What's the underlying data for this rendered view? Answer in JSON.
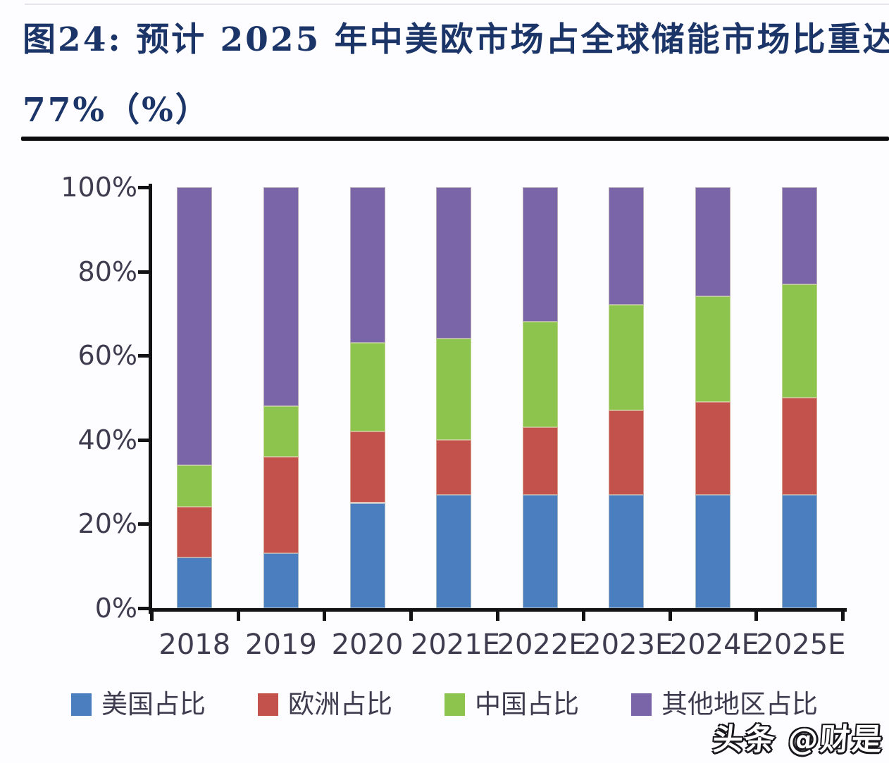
{
  "page": {
    "title_line1": "图24:  预计 2025 年中美欧市场占全球储能市场比重达",
    "title_line2": "77%（%）",
    "watermark": "头条 @财是"
  },
  "chart_data": {
    "type": "bar",
    "stacked": true,
    "unit": "%",
    "title": "图24: 预计 2025 年中美欧市场占全球储能市场比重达 77%（%）",
    "categories": [
      "2018",
      "2019",
      "2020",
      "2021E",
      "2022E",
      "2023E",
      "2024E",
      "2025E"
    ],
    "series": [
      {
        "name": "美国占比",
        "color": "#4a7ebe",
        "values": [
          12,
          13,
          25,
          27,
          27,
          27,
          27,
          27
        ]
      },
      {
        "name": "欧洲占比",
        "color": "#c3514c",
        "values": [
          12,
          23,
          17,
          13,
          16,
          20,
          22,
          23
        ]
      },
      {
        "name": "中国占比",
        "color": "#8cc44e",
        "values": [
          10,
          12,
          21,
          24,
          25,
          25,
          25,
          27
        ]
      },
      {
        "name": "其他地区占比",
        "color": "#7a65a9",
        "values": [
          66,
          52,
          37,
          36,
          32,
          28,
          26,
          23
        ]
      }
    ],
    "yticks": [
      "0%",
      "20%",
      "40%",
      "60%",
      "80%",
      "100%"
    ],
    "ylim": [
      0,
      100
    ],
    "xlabel": "",
    "ylabel": "",
    "grid": false,
    "legend_position": "bottom"
  }
}
